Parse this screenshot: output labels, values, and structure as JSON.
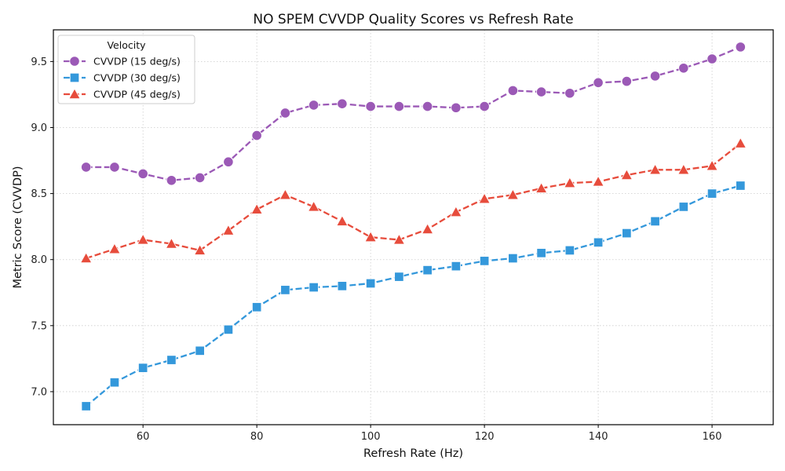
{
  "chart_data": {
    "type": "line",
    "title": "NO SPEM CVVDP Quality Scores vs Refresh Rate",
    "xlabel": "Refresh Rate (Hz)",
    "ylabel": "Metric Score (CVVDP)",
    "xlim": [
      44.25,
      170.75
    ],
    "ylim": [
      6.75,
      9.74
    ],
    "xticks": [
      60,
      80,
      100,
      120,
      140,
      160
    ],
    "xtick_labels": [
      "60",
      "80",
      "100",
      "120",
      "140",
      "160"
    ],
    "yticks": [
      7.0,
      7.5,
      8.0,
      8.5,
      9.0,
      9.5
    ],
    "ytick_labels": [
      "7.0",
      "7.5",
      "8.0",
      "8.5",
      "9.0",
      "9.5"
    ],
    "grid": true,
    "legend": {
      "title": "Velocity",
      "placement": "top-left"
    },
    "x": [
      50,
      55,
      60,
      65,
      70,
      75,
      80,
      85,
      90,
      95,
      100,
      105,
      110,
      115,
      120,
      125,
      130,
      135,
      140,
      145,
      150,
      155,
      160,
      165
    ],
    "series": [
      {
        "name": "CVVDP (15 deg/s)",
        "color": "#9b59b6",
        "marker": "circle",
        "values": [
          8.7,
          8.7,
          8.65,
          8.6,
          8.62,
          8.74,
          8.94,
          9.11,
          9.17,
          9.18,
          9.16,
          9.16,
          9.16,
          9.15,
          9.16,
          9.28,
          9.27,
          9.26,
          9.34,
          9.35,
          9.39,
          9.45,
          9.52,
          9.61
        ]
      },
      {
        "name": "CVVDP (30 deg/s)",
        "color": "#3498db",
        "marker": "square",
        "values": [
          6.89,
          7.07,
          7.18,
          7.24,
          7.31,
          7.47,
          7.64,
          7.77,
          7.79,
          7.8,
          7.82,
          7.87,
          7.92,
          7.95,
          7.99,
          8.01,
          8.05,
          8.07,
          8.13,
          8.2,
          8.29,
          8.4,
          8.5,
          8.56
        ]
      },
      {
        "name": "CVVDP (45 deg/s)",
        "color": "#e74c3c",
        "marker": "triangle",
        "values": [
          8.01,
          8.08,
          8.15,
          8.12,
          8.07,
          8.22,
          8.38,
          8.49,
          8.4,
          8.29,
          8.17,
          8.15,
          8.23,
          8.36,
          8.46,
          8.49,
          8.54,
          8.58,
          8.59,
          8.64,
          8.68,
          8.68,
          8.71,
          8.88
        ]
      }
    ]
  }
}
